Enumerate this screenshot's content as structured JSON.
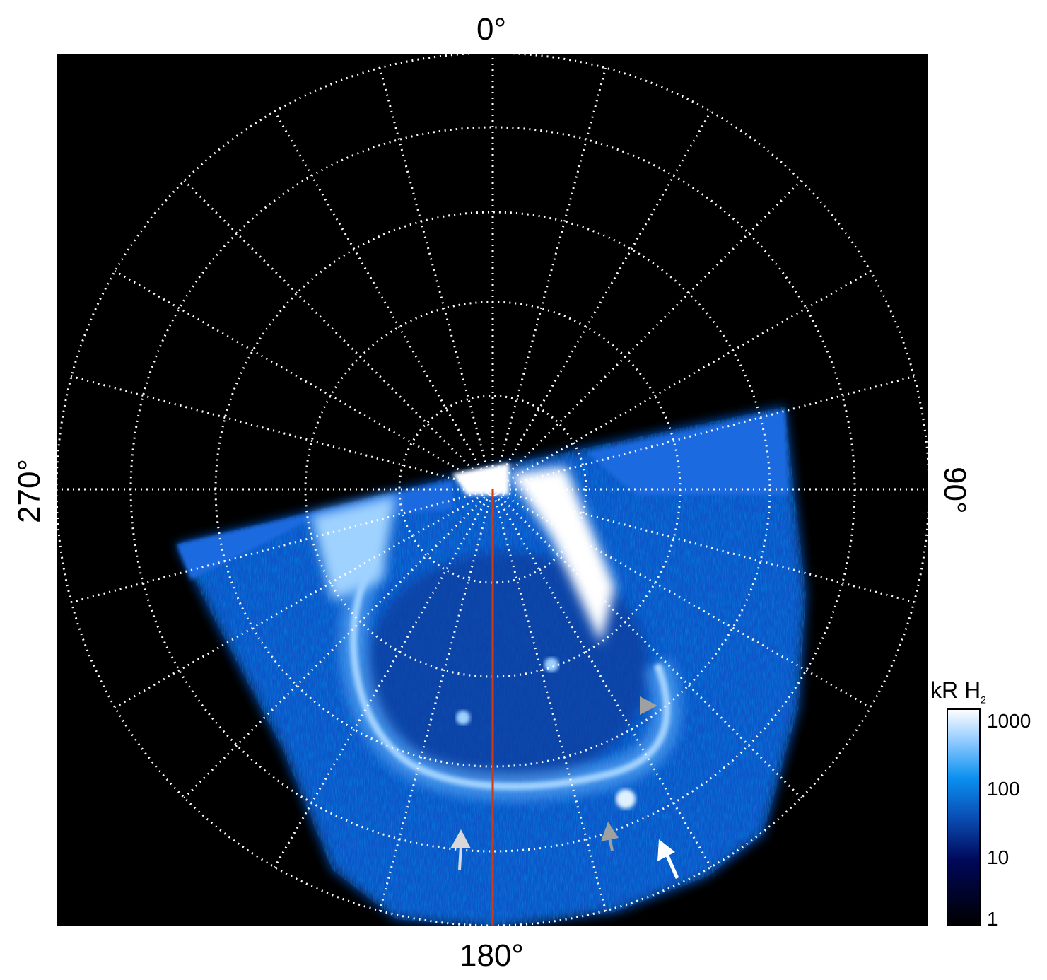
{
  "axis_labels": {
    "top": "0°",
    "bottom": "180°",
    "left": "270°",
    "right": "90°"
  },
  "colorbar": {
    "title": "kR H",
    "title_sub": "2",
    "scale": "log",
    "range": [
      1,
      1000
    ],
    "ticks": [
      "1000",
      "100",
      "10",
      "1"
    ],
    "colors": [
      "#000000",
      "#00085a",
      "#0a4fb5",
      "#0a90f0",
      "#8fcaff",
      "#ffffff"
    ]
  },
  "grid": {
    "meridian_step_deg": 15,
    "latitude_rings": 5,
    "style": "dotted",
    "color": "#ffffff"
  },
  "reference_line_color": "#d03a12",
  "arrows": [
    {
      "color": "#a0a0a0",
      "direction": "right"
    },
    {
      "color": "#a0a0a0",
      "direction": "up-left"
    },
    {
      "color": "#d8d8d8",
      "direction": "up"
    },
    {
      "color": "#ffffff",
      "direction": "up-left"
    }
  ]
}
